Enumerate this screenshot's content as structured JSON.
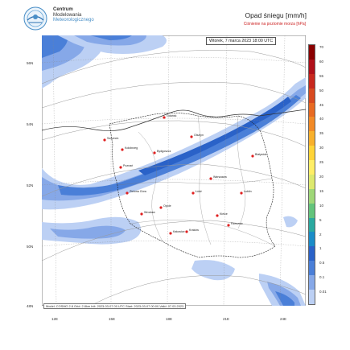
{
  "header": {
    "org_line1": "Centrum",
    "org_line2": "Modelowania",
    "org_line3": "Meteorologicznego",
    "title": "Opad śniegu [mm/h]",
    "subtitle": "Ciśnienie na poziomie morza [hPa]"
  },
  "map": {
    "datetime": "Wtorek, 7 marca 2023 18:00 UTC",
    "footer": "Model: COSMO 2.8  Grid: 2.8km  Init: 2023-03-07 00 UTC   Start: 2023-03-07 00:00   Valid: 07.03.2023",
    "lat_labels": [
      "56N",
      "54N",
      "52N",
      "50N",
      "48N"
    ],
    "lon_labels": [
      "12E",
      "15E",
      "18E",
      "21E",
      "24E"
    ],
    "cities": [
      "Gdańsk",
      "Szczecin",
      "Kołobrzeg",
      "Bydgoszcz",
      "Olsztyn",
      "Białystok",
      "Poznań",
      "Warszawa",
      "Łódź",
      "Lublin",
      "Wrocław",
      "Kraków",
      "Katowice",
      "Rzeszów",
      "Zielona Góra",
      "Opole",
      "Kielce"
    ]
  },
  "colorbar": {
    "labels": [
      "70",
      "60",
      "55",
      "50",
      "45",
      "40",
      "35",
      "30",
      "25",
      "20",
      "15",
      "10",
      "5",
      "2",
      "1",
      "0.5",
      "0.1",
      "0.01"
    ],
    "colors": [
      "#8b0000",
      "#b0101a",
      "#c8281e",
      "#d84a20",
      "#e86a22",
      "#f28a26",
      "#f8b02c",
      "#ffd438",
      "#ffee66",
      "#dde96e",
      "#9fd778",
      "#63c47c",
      "#2aa9a0",
      "#1a8cc8",
      "#2a62c8",
      "#4a7fd8",
      "#86a8e8",
      "#bcd0f4"
    ]
  }
}
